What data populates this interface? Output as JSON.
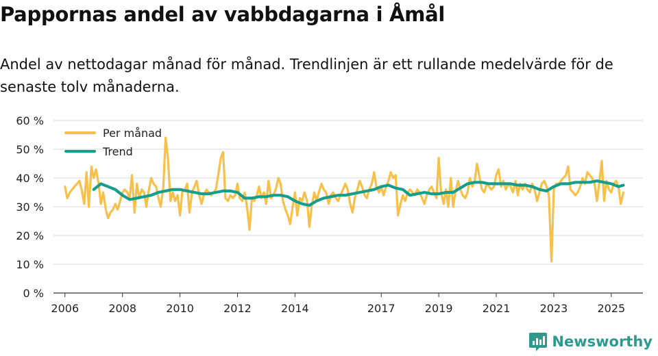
{
  "title": "Pappornas andel av vabbdagarna i Åmål",
  "subtitle": "Andel av nettodagar månad för månad. Trendlinjen är ett rullande medelvärde för de senaste tolv månaderna.",
  "brand": "Newsworthy",
  "colors": {
    "monthly": "#f7c04a",
    "trend": "#179d8c",
    "grid": "#d9d9d9",
    "axis": "#333333",
    "brand": "#2e9a8e"
  },
  "chart_data": {
    "type": "line",
    "title": "Pappornas andel av vabbdagarna i Åmål",
    "ylabel": "",
    "xlabel": "",
    "ylim": [
      0,
      60
    ],
    "xlim": [
      2005.6,
      2026.1
    ],
    "y_ticks": [
      {
        "value": 0,
        "label": "0 %"
      },
      {
        "value": 10,
        "label": "10 %"
      },
      {
        "value": 20,
        "label": "20 %"
      },
      {
        "value": 30,
        "label": "30 %"
      },
      {
        "value": 40,
        "label": "40 %"
      },
      {
        "value": 50,
        "label": "50 %"
      },
      {
        "value": 60,
        "label": "60 %"
      }
    ],
    "x_ticks": [
      {
        "value": 2006,
        "label": "2006"
      },
      {
        "value": 2008,
        "label": "2008"
      },
      {
        "value": 2010,
        "label": "2010"
      },
      {
        "value": 2012,
        "label": "2012"
      },
      {
        "value": 2014,
        "label": "2014"
      },
      {
        "value": 2017,
        "label": "2017"
      },
      {
        "value": 2019,
        "label": "2019"
      },
      {
        "value": 2021,
        "label": "2021"
      },
      {
        "value": 2023,
        "label": "2023"
      },
      {
        "value": 2025,
        "label": "2025"
      }
    ],
    "legend": [
      "Per månad",
      "Trend"
    ],
    "series": [
      {
        "name": "Per månad",
        "x": [
          2006.0,
          2006.08,
          2006.17,
          2006.25,
          2006.33,
          2006.42,
          2006.5,
          2006.58,
          2006.67,
          2006.75,
          2006.83,
          2006.92,
          2007.0,
          2007.08,
          2007.17,
          2007.25,
          2007.33,
          2007.42,
          2007.5,
          2007.58,
          2007.67,
          2007.75,
          2007.83,
          2007.92,
          2008.0,
          2008.08,
          2008.17,
          2008.25,
          2008.33,
          2008.42,
          2008.5,
          2008.58,
          2008.67,
          2008.75,
          2008.83,
          2008.92,
          2009.0,
          2009.08,
          2009.17,
          2009.25,
          2009.33,
          2009.42,
          2009.5,
          2009.58,
          2009.67,
          2009.75,
          2009.83,
          2009.92,
          2010.0,
          2010.08,
          2010.17,
          2010.25,
          2010.33,
          2010.42,
          2010.5,
          2010.58,
          2010.67,
          2010.75,
          2010.83,
          2010.92,
          2011.0,
          2011.08,
          2011.17,
          2011.25,
          2011.33,
          2011.42,
          2011.5,
          2011.58,
          2011.67,
          2011.75,
          2011.83,
          2011.92,
          2012.0,
          2012.08,
          2012.17,
          2012.25,
          2012.33,
          2012.42,
          2012.5,
          2012.58,
          2012.67,
          2012.75,
          2012.83,
          2012.92,
          2013.0,
          2013.08,
          2013.17,
          2013.25,
          2013.33,
          2013.42,
          2013.5,
          2013.58,
          2013.67,
          2013.75,
          2013.83,
          2013.92,
          2014.0,
          2014.08,
          2014.17,
          2014.25,
          2014.33,
          2014.42,
          2014.5,
          2014.58,
          2014.67,
          2014.75,
          2014.83,
          2014.92,
          2015.0,
          2015.08,
          2015.17,
          2015.25,
          2015.33,
          2015.42,
          2015.5,
          2015.58,
          2015.67,
          2015.75,
          2015.83,
          2015.92,
          2016.0,
          2016.08,
          2016.17,
          2016.25,
          2016.33,
          2016.42,
          2016.5,
          2016.58,
          2016.67,
          2016.75,
          2016.83,
          2016.92,
          2017.0,
          2017.08,
          2017.17,
          2017.25,
          2017.33,
          2017.42,
          2017.5,
          2017.58,
          2017.67,
          2017.75,
          2017.83,
          2017.92,
          2018.0,
          2018.08,
          2018.17,
          2018.25,
          2018.33,
          2018.42,
          2018.5,
          2018.58,
          2018.67,
          2018.75,
          2018.83,
          2018.92,
          2019.0,
          2019.08,
          2019.17,
          2019.25,
          2019.33,
          2019.42,
          2019.5,
          2019.58,
          2019.67,
          2019.75,
          2019.83,
          2019.92,
          2020.0,
          2020.08,
          2020.17,
          2020.25,
          2020.33,
          2020.42,
          2020.5,
          2020.58,
          2020.67,
          2020.75,
          2020.83,
          2020.92,
          2021.0,
          2021.08,
          2021.17,
          2021.25,
          2021.33,
          2021.42,
          2021.5,
          2021.58,
          2021.67,
          2021.75,
          2021.83,
          2021.92,
          2022.0,
          2022.08,
          2022.17,
          2022.25,
          2022.33,
          2022.42,
          2022.5,
          2022.58,
          2022.67,
          2022.75,
          2022.83,
          2022.92,
          2023.0,
          2023.08,
          2023.17,
          2023.25,
          2023.33,
          2023.42,
          2023.5,
          2023.58,
          2023.67,
          2023.75,
          2023.83,
          2023.92,
          2024.0,
          2024.08,
          2024.17,
          2024.25,
          2024.33,
          2024.42,
          2024.5,
          2024.58,
          2024.67,
          2024.75,
          2024.83,
          2024.92,
          2025.0,
          2025.08,
          2025.17,
          2025.25,
          2025.33,
          2025.42
        ],
        "values": [
          37,
          33,
          35,
          36,
          37,
          38,
          39,
          36,
          31,
          42,
          30,
          44,
          40,
          43,
          38,
          31,
          35,
          29,
          26,
          28,
          29,
          31,
          29,
          32,
          35,
          36,
          35,
          33,
          41,
          28,
          38,
          33,
          36,
          35,
          30,
          36,
          40,
          38,
          37,
          33,
          30,
          37,
          54,
          47,
          32,
          35,
          32,
          34,
          27,
          35,
          36,
          38,
          28,
          35,
          37,
          39,
          34,
          31,
          34,
          36,
          35,
          34,
          35,
          36,
          41,
          47,
          49,
          33,
          32,
          34,
          33,
          34,
          38,
          33,
          32,
          35,
          30,
          22,
          33,
          32,
          34,
          37,
          33,
          35,
          31,
          39,
          33,
          34,
          36,
          40,
          38,
          32,
          29,
          27,
          24,
          30,
          35,
          27,
          33,
          32,
          35,
          32,
          23,
          30,
          35,
          32,
          35,
          38,
          36,
          35,
          31,
          34,
          35,
          33,
          32,
          34,
          36,
          38,
          36,
          31,
          28,
          33,
          36,
          39,
          37,
          34,
          33,
          36,
          38,
          42,
          37,
          35,
          37,
          34,
          37,
          39,
          42,
          40,
          41,
          27,
          31,
          34,
          32,
          35,
          36,
          35,
          34,
          36,
          35,
          33,
          31,
          34,
          36,
          37,
          35,
          33,
          47,
          35,
          31,
          36,
          30,
          40,
          30,
          35,
          39,
          36,
          34,
          33,
          35,
          40,
          37,
          39,
          45,
          40,
          36,
          35,
          38,
          37,
          36,
          37,
          41,
          43,
          37,
          39,
          36,
          38,
          37,
          35,
          39,
          34,
          38,
          36,
          38,
          36,
          35,
          38,
          36,
          32,
          35,
          38,
          39,
          37,
          34,
          11,
          36,
          38,
          38,
          39,
          40,
          41,
          44,
          36,
          35,
          34,
          35,
          37,
          40,
          38,
          42,
          41,
          40,
          38,
          32,
          38,
          46,
          32,
          39,
          36,
          35,
          38,
          39,
          37,
          31,
          35
        ]
      },
      {
        "name": "Trend",
        "x": [
          2007.0,
          2007.25,
          2007.5,
          2007.75,
          2008.0,
          2008.25,
          2008.5,
          2008.75,
          2009.0,
          2009.25,
          2009.5,
          2009.75,
          2010.0,
          2010.25,
          2010.5,
          2010.75,
          2011.0,
          2011.25,
          2011.5,
          2011.75,
          2012.0,
          2012.25,
          2012.5,
          2012.75,
          2013.0,
          2013.25,
          2013.5,
          2013.75,
          2014.0,
          2014.25,
          2014.5,
          2014.75,
          2015.0,
          2015.25,
          2015.5,
          2015.75,
          2016.0,
          2016.25,
          2016.5,
          2016.75,
          2017.0,
          2017.25,
          2017.5,
          2017.75,
          2018.0,
          2018.25,
          2018.5,
          2018.75,
          2019.0,
          2019.25,
          2019.5,
          2019.75,
          2020.0,
          2020.25,
          2020.5,
          2020.75,
          2021.0,
          2021.25,
          2021.5,
          2021.75,
          2022.0,
          2022.25,
          2022.5,
          2022.75,
          2023.0,
          2023.25,
          2023.5,
          2023.75,
          2024.0,
          2024.25,
          2024.5,
          2024.75,
          2025.0,
          2025.25,
          2025.42
        ],
        "values": [
          36,
          38,
          37,
          36,
          34,
          32.5,
          33,
          33.5,
          34,
          35,
          35.5,
          36,
          36,
          35.5,
          35,
          34.5,
          34.5,
          35,
          35.5,
          35.5,
          35,
          33,
          33,
          33.5,
          33.5,
          34,
          34,
          33.5,
          32,
          31,
          30.5,
          32,
          33,
          33.5,
          34,
          34,
          34.5,
          35,
          35.5,
          36,
          37,
          37.5,
          36.5,
          36,
          34,
          34.5,
          35,
          34.5,
          34.5,
          35,
          35,
          36.5,
          38,
          38.5,
          38.5,
          38,
          38,
          38,
          38,
          37.5,
          37.5,
          37,
          36,
          35.5,
          37,
          38,
          38,
          38.5,
          38.5,
          38.5,
          39,
          38.5,
          38,
          37,
          37.5
        ]
      }
    ]
  }
}
